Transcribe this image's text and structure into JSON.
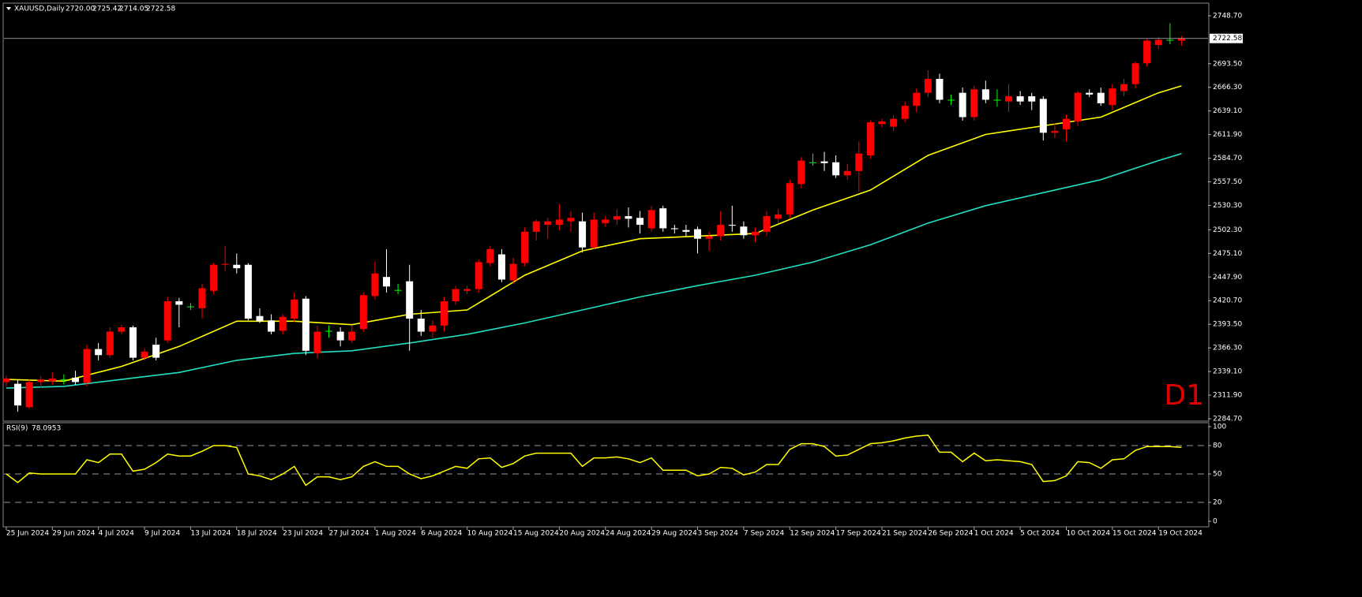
{
  "chart_data": {
    "type": "candlestick",
    "symbol": "XAUUSD,Daily",
    "quote": [
      "2720.00",
      "2725.42",
      "2714.05",
      "2722.58"
    ],
    "timeframe": "D1",
    "bull_color": "#ff0000",
    "bear_color": "#ffffff",
    "doji_color": "#00ff00",
    "ylim": [
      2282.9,
      2762.3
    ],
    "yticks": [
      {
        "value": 2748.7,
        "label": "2748.70"
      },
      {
        "value": 2693.5,
        "label": "2693.50"
      },
      {
        "value": 2666.3,
        "label": "2666.30"
      },
      {
        "value": 2639.1,
        "label": "2639.10"
      },
      {
        "value": 2611.9,
        "label": "2611.90"
      },
      {
        "value": 2584.7,
        "label": "2584.70"
      },
      {
        "value": 2557.5,
        "label": "2557.50"
      },
      {
        "value": 2530.3,
        "label": "2530.30"
      },
      {
        "value": 2502.3,
        "label": "2502.30"
      },
      {
        "value": 2475.1,
        "label": "2475.10"
      },
      {
        "value": 2447.9,
        "label": "2447.90"
      },
      {
        "value": 2420.7,
        "label": "2420.70"
      },
      {
        "value": 2393.5,
        "label": "2393.50"
      },
      {
        "value": 2366.3,
        "label": "2366.30"
      },
      {
        "value": 2339.1,
        "label": "2339.10"
      },
      {
        "value": 2311.9,
        "label": "2311.90"
      },
      {
        "value": 2284.7,
        "label": "2284.70"
      }
    ],
    "price_line": {
      "value": 2722.58,
      "label": "2722.58"
    },
    "xticks": [
      {
        "value": 0,
        "label": "25 Jun 2024"
      },
      {
        "value": 4,
        "label": "29 Jun 2024"
      },
      {
        "value": 8,
        "label": "4 Jul 2024"
      },
      {
        "value": 12,
        "label": "9 Jul 2024"
      },
      {
        "value": 16,
        "label": "13 Jul 2024"
      },
      {
        "value": 20,
        "label": "18 Jul 2024"
      },
      {
        "value": 24,
        "label": "23 Jul 2024"
      },
      {
        "value": 28,
        "label": "27 Jul 2024"
      },
      {
        "value": 32,
        "label": "1 Aug 2024"
      },
      {
        "value": 36,
        "label": "6 Aug 2024"
      },
      {
        "value": 40,
        "label": "10 Aug 2024"
      },
      {
        "value": 44,
        "label": "15 Aug 2024"
      },
      {
        "value": 48,
        "label": "20 Aug 2024"
      },
      {
        "value": 52,
        "label": "24 Aug 2024"
      },
      {
        "value": 56,
        "label": "29 Aug 2024"
      },
      {
        "value": 60,
        "label": "3 Sep 2024"
      },
      {
        "value": 64,
        "label": "7 Sep 2024"
      },
      {
        "value": 68,
        "label": "12 Sep 2024"
      },
      {
        "value": 72,
        "label": "17 Sep 2024"
      },
      {
        "value": 76,
        "label": "21 Sep 2024"
      },
      {
        "value": 80,
        "label": "26 Sep 2024"
      },
      {
        "value": 84,
        "label": "1 Oct 2024"
      },
      {
        "value": 88,
        "label": "5 Oct 2024"
      },
      {
        "value": 92,
        "label": "10 Oct 2024"
      },
      {
        "value": 96,
        "label": "15 Oct 2024"
      },
      {
        "value": 100,
        "label": "19 Oct 2024"
      }
    ],
    "xlim": [
      -0.2,
      104.3
    ],
    "open": [
      2327,
      2325,
      2298,
      2327,
      2328,
      2330,
      2332,
      2326,
      2365,
      2358,
      2385,
      2390,
      2355,
      2370,
      2375,
      2420,
      2414,
      2412,
      2432,
      2462,
      2462,
      2462,
      2403,
      2398,
      2386,
      2400,
      2423,
      2360,
      2386,
      2385,
      2375,
      2388,
      2426,
      2448,
      2433,
      2443,
      2400,
      2385,
      2392,
      2420,
      2432,
      2434,
      2464,
      2474,
      2444,
      2464,
      2500,
      2508,
      2508,
      2512,
      2512,
      2482,
      2510,
      2514,
      2518,
      2516,
      2504,
      2527,
      2504,
      2502,
      2503,
      2492,
      2495,
      2508,
      2506,
      2496,
      2500,
      2515,
      2520,
      2555,
      2580,
      2581,
      2580,
      2565,
      2570,
      2588,
      2624,
      2621,
      2630,
      2645,
      2660,
      2676,
      2652,
      2660,
      2632,
      2664,
      2652,
      2650,
      2656,
      2656,
      2653,
      2614,
      2618,
      2627,
      2660,
      2660,
      2646,
      2662,
      2670,
      2694,
      2715,
      2721,
      2720
    ],
    "high": [
      2334,
      2330,
      2330,
      2334,
      2338,
      2336,
      2340,
      2370,
      2372,
      2390,
      2393,
      2392,
      2366,
      2378,
      2425,
      2424,
      2418,
      2440,
      2464,
      2484,
      2475,
      2464,
      2412,
      2405,
      2405,
      2430,
      2426,
      2392,
      2392,
      2390,
      2392,
      2430,
      2466,
      2480,
      2440,
      2462,
      2410,
      2398,
      2425,
      2438,
      2438,
      2468,
      2484,
      2480,
      2470,
      2505,
      2514,
      2516,
      2532,
      2524,
      2522,
      2522,
      2518,
      2526,
      2528,
      2524,
      2530,
      2530,
      2508,
      2508,
      2506,
      2500,
      2524,
      2530,
      2512,
      2505,
      2524,
      2526,
      2560,
      2586,
      2590,
      2592,
      2588,
      2578,
      2604,
      2628,
      2630,
      2634,
      2650,
      2665,
      2686,
      2682,
      2658,
      2666,
      2668,
      2674,
      2664,
      2670,
      2662,
      2660,
      2656,
      2625,
      2635,
      2662,
      2664,
      2666,
      2670,
      2676,
      2696,
      2722,
      2724,
      2740,
      2725.42
    ],
    "low": [
      2322,
      2293,
      2296,
      2320,
      2324,
      2324,
      2324,
      2322,
      2352,
      2355,
      2382,
      2352,
      2352,
      2352,
      2372,
      2390,
      2410,
      2400,
      2428,
      2455,
      2452,
      2398,
      2395,
      2382,
      2382,
      2396,
      2358,
      2354,
      2378,
      2368,
      2372,
      2385,
      2422,
      2430,
      2428,
      2363,
      2380,
      2378,
      2385,
      2416,
      2428,
      2430,
      2460,
      2442,
      2440,
      2460,
      2490,
      2492,
      2502,
      2500,
      2476,
      2480,
      2506,
      2508,
      2505,
      2498,
      2500,
      2500,
      2498,
      2495,
      2475,
      2478,
      2490,
      2500,
      2492,
      2488,
      2495,
      2510,
      2516,
      2550,
      2576,
      2570,
      2562,
      2560,
      2546,
      2584,
      2620,
      2616,
      2626,
      2638,
      2655,
      2648,
      2646,
      2628,
      2628,
      2648,
      2644,
      2638,
      2646,
      2640,
      2605,
      2608,
      2604,
      2622,
      2655,
      2645,
      2640,
      2656,
      2665,
      2690,
      2710,
      2716,
      2714.05
    ],
    "close": [
      2331,
      2300,
      2327,
      2330,
      2331,
      2330,
      2327,
      2365,
      2358,
      2385,
      2390,
      2355,
      2362,
      2355,
      2420,
      2416,
      2414,
      2435,
      2462,
      2463,
      2458,
      2400,
      2397,
      2385,
      2402,
      2422,
      2363,
      2385,
      2386,
      2375,
      2385,
      2427,
      2452,
      2437,
      2433,
      2400,
      2385,
      2392,
      2420,
      2434,
      2434,
      2465,
      2480,
      2445,
      2463,
      2500,
      2512,
      2512,
      2514,
      2516,
      2482,
      2514,
      2514,
      2518,
      2515,
      2508,
      2525,
      2504,
      2503,
      2500,
      2492,
      2495,
      2508,
      2507,
      2496,
      2500,
      2518,
      2520,
      2556,
      2582,
      2580,
      2579,
      2565,
      2570,
      2590,
      2626,
      2627,
      2630,
      2645,
      2660,
      2676,
      2652,
      2652,
      2632,
      2664,
      2652,
      2652,
      2656,
      2650,
      2650,
      2614,
      2616,
      2630,
      2660,
      2658,
      2648,
      2665,
      2670,
      2694,
      2720,
      2721,
      2721,
      2722.58
    ],
    "ma_series": [
      {
        "color": "#ffff00",
        "x": [
          0,
          5,
          10,
          15,
          20,
          25,
          30,
          35,
          40,
          45,
          50,
          55,
          60,
          65,
          70,
          75,
          80,
          85,
          90,
          95,
          100,
          102
        ],
        "values": [
          2330,
          2328,
          2345,
          2368,
          2397,
          2397,
          2393,
          2405,
          2410,
          2450,
          2478,
          2492,
          2495,
          2498,
          2525,
          2548,
          2588,
          2612,
          2622,
          2632,
          2660,
          2668
        ]
      },
      {
        "color": "#20e0c0",
        "x": [
          0,
          5,
          10,
          15,
          20,
          25,
          30,
          35,
          40,
          45,
          50,
          55,
          60,
          65,
          70,
          75,
          80,
          85,
          90,
          95,
          100,
          102
        ],
        "values": [
          2320,
          2322,
          2330,
          2338,
          2352,
          2360,
          2363,
          2372,
          2382,
          2395,
          2410,
          2425,
          2438,
          2450,
          2465,
          2485,
          2510,
          2530,
          2545,
          2560,
          2582,
          2590
        ]
      }
    ],
    "rsi": {
      "title": "RSI(9)",
      "color": "#ffff00",
      "ylim": [
        0,
        100
      ],
      "yticks": [
        0,
        20,
        50,
        80,
        100
      ],
      "levels": [
        80,
        50,
        20
      ],
      "values": [
        50,
        41,
        51,
        50,
        50,
        50,
        50,
        65,
        62,
        71,
        71,
        53,
        55,
        62,
        71,
        69,
        69,
        74,
        80,
        80,
        78,
        50,
        48,
        44,
        50,
        58,
        38,
        47,
        47,
        44,
        47,
        58,
        63,
        58,
        58,
        50,
        45,
        48,
        53,
        58,
        56,
        66,
        67,
        57,
        61,
        69,
        72,
        72,
        72,
        72,
        58,
        67,
        67,
        68,
        66,
        62,
        67,
        54,
        54,
        54,
        48,
        50,
        57,
        56,
        49,
        52,
        60,
        60,
        76,
        82,
        82,
        79,
        69,
        70,
        76,
        82,
        83,
        85,
        88,
        90,
        91,
        73,
        73,
        63,
        72,
        64,
        65,
        64,
        63,
        60,
        42,
        43,
        48,
        63,
        62,
        56,
        65,
        66,
        75,
        79,
        79,
        79,
        78.0953
      ]
    }
  }
}
